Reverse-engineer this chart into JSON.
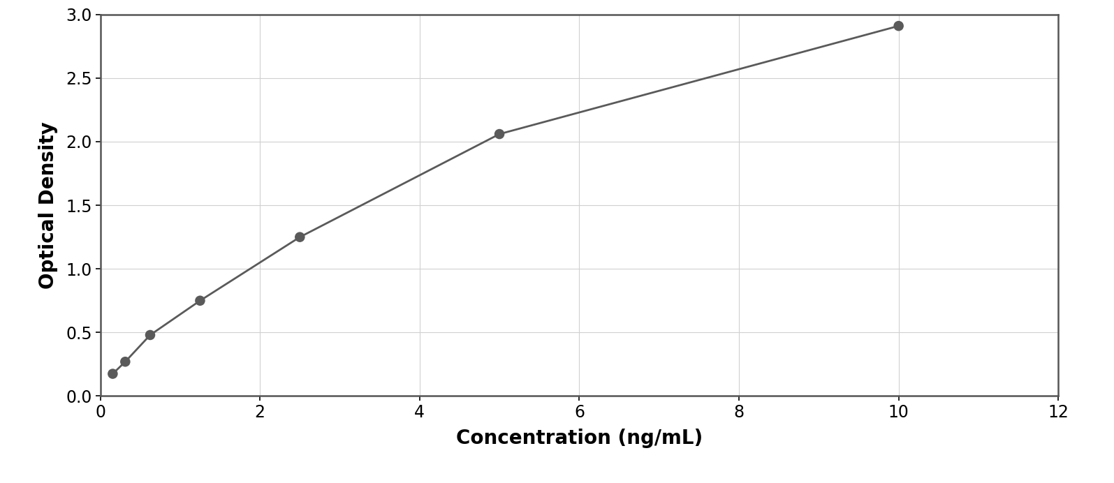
{
  "x_data": [
    0.156,
    0.313,
    0.625,
    1.25,
    2.5,
    5.0,
    10.0
  ],
  "y_data": [
    0.175,
    0.27,
    0.48,
    0.75,
    1.25,
    2.06,
    2.91
  ],
  "xlabel": "Concentration (ng/mL)",
  "ylabel": "Optical Density",
  "xlim": [
    0,
    12
  ],
  "ylim": [
    0,
    3
  ],
  "xticks": [
    0,
    2,
    4,
    6,
    8,
    10,
    12
  ],
  "yticks": [
    0,
    0.5,
    1.0,
    1.5,
    2.0,
    2.5,
    3.0
  ],
  "point_color": "#5a5a5a",
  "line_color": "#5a5a5a",
  "background_color": "#ffffff",
  "spine_color": "#555555",
  "grid_color": "#d0d0d0",
  "xlabel_fontsize": 20,
  "ylabel_fontsize": 20,
  "tick_fontsize": 17,
  "point_size": 110,
  "line_width": 2.0,
  "figure_bg": "#ffffff"
}
